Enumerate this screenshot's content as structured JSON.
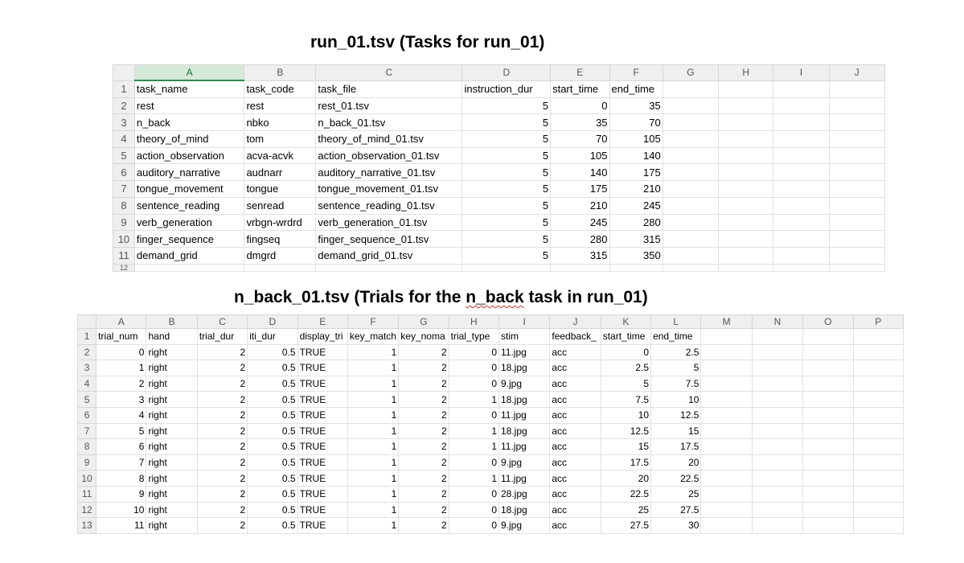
{
  "title1": "run_01.tsv (Tasks for run_01)",
  "title2_pre": "n_back_01.tsv (Trials for the ",
  "title2_word": "n_back",
  "title2_post": " task in run_01)",
  "sheet1": {
    "columns": [
      "A",
      "B",
      "C",
      "D",
      "E",
      "F",
      "G",
      "H",
      "I",
      "J"
    ],
    "selected_column": "A",
    "rows": [
      {
        "n": "1",
        "cells": [
          "task_name",
          "task_code",
          "task_file",
          "instruction_dur",
          "start_time",
          "end_time",
          "",
          "",
          "",
          ""
        ]
      },
      {
        "n": "2",
        "cells": [
          "rest",
          "rest",
          "rest_01.tsv",
          "5",
          "0",
          "35",
          "",
          "",
          "",
          ""
        ]
      },
      {
        "n": "3",
        "cells": [
          "n_back",
          "nbko",
          "n_back_01.tsv",
          "5",
          "35",
          "70",
          "",
          "",
          "",
          ""
        ]
      },
      {
        "n": "4",
        "cells": [
          "theory_of_mind",
          "tom",
          "theory_of_mind_01.tsv",
          "5",
          "70",
          "105",
          "",
          "",
          "",
          ""
        ]
      },
      {
        "n": "5",
        "cells": [
          "action_observation",
          "acva-acvk",
          "action_observation_01.tsv",
          "5",
          "105",
          "140",
          "",
          "",
          "",
          ""
        ]
      },
      {
        "n": "6",
        "cells": [
          "auditory_narrative",
          "audnarr",
          "auditory_narrative_01.tsv",
          "5",
          "140",
          "175",
          "",
          "",
          "",
          ""
        ]
      },
      {
        "n": "7",
        "cells": [
          "tongue_movement",
          "tongue",
          "tongue_movement_01.tsv",
          "5",
          "175",
          "210",
          "",
          "",
          "",
          ""
        ]
      },
      {
        "n": "8",
        "cells": [
          "sentence_reading",
          "senread",
          "sentence_reading_01.tsv",
          "5",
          "210",
          "245",
          "",
          "",
          "",
          ""
        ]
      },
      {
        "n": "9",
        "cells": [
          "verb_generation",
          "vrbgn-wrdrd",
          "verb_generation_01.tsv",
          "5",
          "245",
          "280",
          "",
          "",
          "",
          ""
        ]
      },
      {
        "n": "10",
        "cells": [
          "finger_sequence",
          "fingseq",
          "finger_sequence_01.tsv",
          "5",
          "280",
          "315",
          "",
          "",
          "",
          ""
        ]
      },
      {
        "n": "11",
        "cells": [
          "demand_grid",
          "dmgrd",
          "demand_grid_01.tsv",
          "5",
          "315",
          "350",
          "",
          "",
          "",
          ""
        ]
      },
      {
        "n": "12",
        "cells": [
          "",
          "",
          "",
          "",
          "",
          "",
          "",
          "",
          "",
          ""
        ]
      }
    ]
  },
  "sheet2": {
    "columns": [
      "A",
      "B",
      "C",
      "D",
      "E",
      "F",
      "G",
      "H",
      "I",
      "J",
      "K",
      "L",
      "M",
      "N",
      "O",
      "P"
    ],
    "rows": [
      {
        "n": "1",
        "cells": [
          "trial_num",
          "hand",
          "trial_dur",
          "iti_dur",
          "display_tri",
          "key_match",
          "key_noma",
          "trial_type",
          "stim",
          "feedback_",
          "start_time",
          "end_time",
          "",
          "",
          "",
          ""
        ]
      },
      {
        "n": "2",
        "cells": [
          "0",
          "right",
          "2",
          "0.5",
          "TRUE",
          "1",
          "2",
          "0",
          "11.jpg",
          "acc",
          "0",
          "2.5",
          "",
          "",
          "",
          ""
        ]
      },
      {
        "n": "3",
        "cells": [
          "1",
          "right",
          "2",
          "0.5",
          "TRUE",
          "1",
          "2",
          "0",
          "18.jpg",
          "acc",
          "2.5",
          "5",
          "",
          "",
          "",
          ""
        ]
      },
      {
        "n": "4",
        "cells": [
          "2",
          "right",
          "2",
          "0.5",
          "TRUE",
          "1",
          "2",
          "0",
          "9.jpg",
          "acc",
          "5",
          "7.5",
          "",
          "",
          "",
          ""
        ]
      },
      {
        "n": "5",
        "cells": [
          "3",
          "right",
          "2",
          "0.5",
          "TRUE",
          "1",
          "2",
          "1",
          "18.jpg",
          "acc",
          "7.5",
          "10",
          "",
          "",
          "",
          ""
        ]
      },
      {
        "n": "6",
        "cells": [
          "4",
          "right",
          "2",
          "0.5",
          "TRUE",
          "1",
          "2",
          "0",
          "11.jpg",
          "acc",
          "10",
          "12.5",
          "",
          "",
          "",
          ""
        ]
      },
      {
        "n": "7",
        "cells": [
          "5",
          "right",
          "2",
          "0.5",
          "TRUE",
          "1",
          "2",
          "1",
          "18.jpg",
          "acc",
          "12.5",
          "15",
          "",
          "",
          "",
          ""
        ]
      },
      {
        "n": "8",
        "cells": [
          "6",
          "right",
          "2",
          "0.5",
          "TRUE",
          "1",
          "2",
          "1",
          "11.jpg",
          "acc",
          "15",
          "17.5",
          "",
          "",
          "",
          ""
        ]
      },
      {
        "n": "9",
        "cells": [
          "7",
          "right",
          "2",
          "0.5",
          "TRUE",
          "1",
          "2",
          "0",
          "9.jpg",
          "acc",
          "17.5",
          "20",
          "",
          "",
          "",
          ""
        ]
      },
      {
        "n": "10",
        "cells": [
          "8",
          "right",
          "2",
          "0.5",
          "TRUE",
          "1",
          "2",
          "1",
          "11.jpg",
          "acc",
          "20",
          "22.5",
          "",
          "",
          "",
          ""
        ]
      },
      {
        "n": "11",
        "cells": [
          "9",
          "right",
          "2",
          "0.5",
          "TRUE",
          "1",
          "2",
          "0",
          "28.jpg",
          "acc",
          "22.5",
          "25",
          "",
          "",
          "",
          ""
        ]
      },
      {
        "n": "12",
        "cells": [
          "10",
          "right",
          "2",
          "0.5",
          "TRUE",
          "1",
          "2",
          "0",
          "18.jpg",
          "acc",
          "25",
          "27.5",
          "",
          "",
          "",
          ""
        ]
      },
      {
        "n": "13",
        "cells": [
          "11",
          "right",
          "2",
          "0.5",
          "TRUE",
          "1",
          "2",
          "0",
          "9.jpg",
          "acc",
          "27.5",
          "30",
          "",
          "",
          "",
          ""
        ]
      }
    ]
  }
}
